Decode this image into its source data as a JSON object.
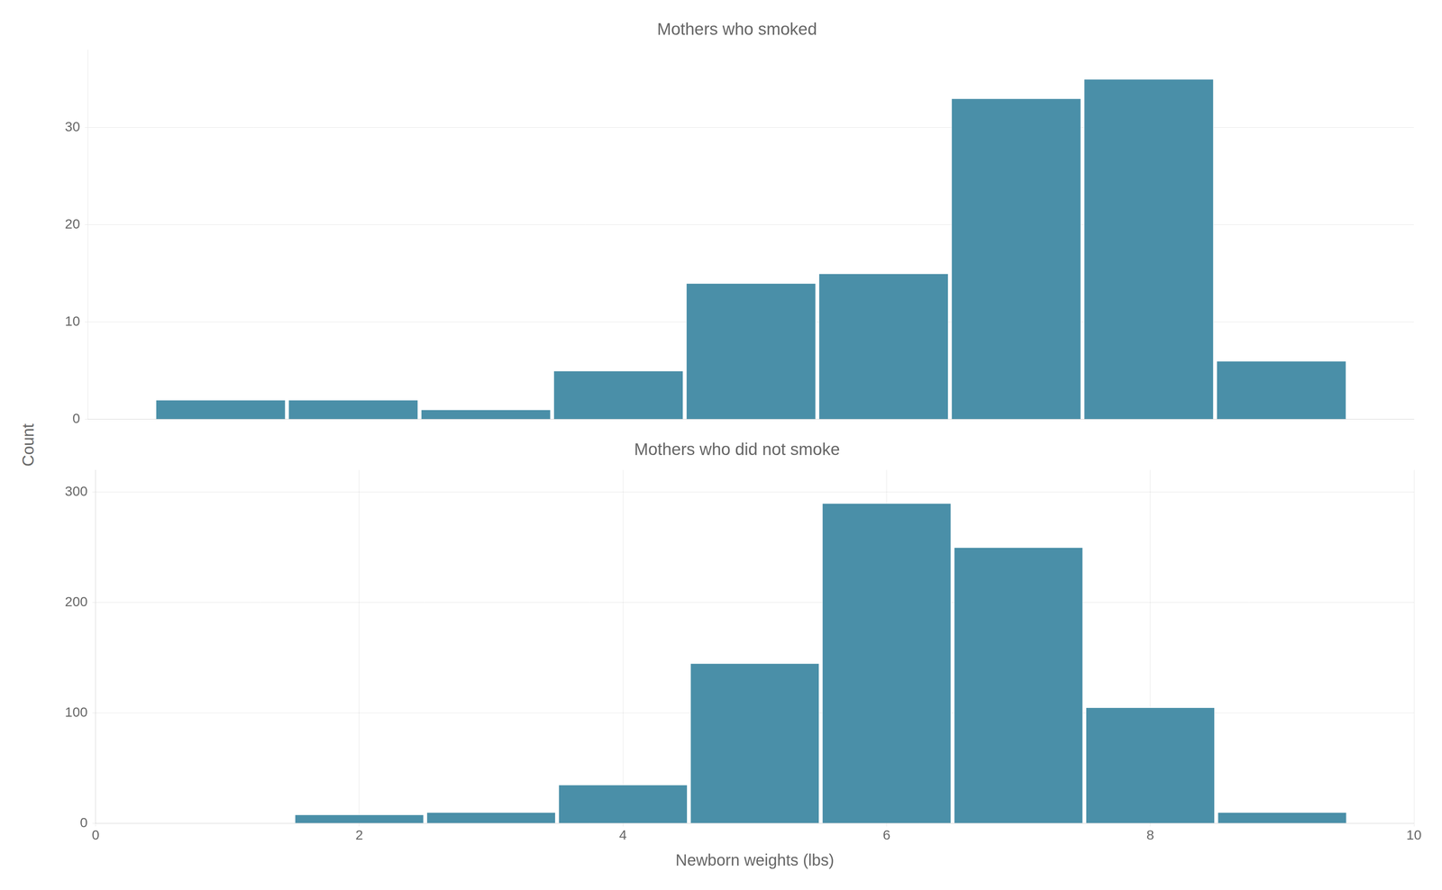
{
  "ylabel": "Count",
  "chart_data": [
    {
      "type": "bar",
      "title": "Mothers who smoked",
      "x": [
        1,
        2,
        3,
        4,
        5,
        6,
        7,
        8,
        9
      ],
      "values": [
        2,
        2,
        1,
        5,
        14,
        15,
        33,
        35,
        6
      ],
      "color": "#4a8fa8",
      "xlim": [
        0,
        10
      ],
      "ylim": [
        0,
        38
      ],
      "yticks": [
        0,
        10,
        20,
        30
      ],
      "grid": true,
      "tick_labels": "y"
    },
    {
      "type": "bar",
      "title": "Mothers who did not smoke",
      "x": [
        1,
        2,
        3,
        4,
        5,
        6,
        7,
        8,
        9
      ],
      "values": [
        0,
        8,
        10,
        35,
        145,
        290,
        250,
        105,
        10
      ],
      "color": "#4a8fa8",
      "xlabel": "Newborn weights (lbs)",
      "xlim": [
        0,
        10
      ],
      "xticks": [
        0,
        2,
        4,
        6,
        8,
        10
      ],
      "ylim": [
        0,
        320
      ],
      "yticks": [
        0,
        100,
        200,
        300
      ],
      "grid": true
    }
  ]
}
